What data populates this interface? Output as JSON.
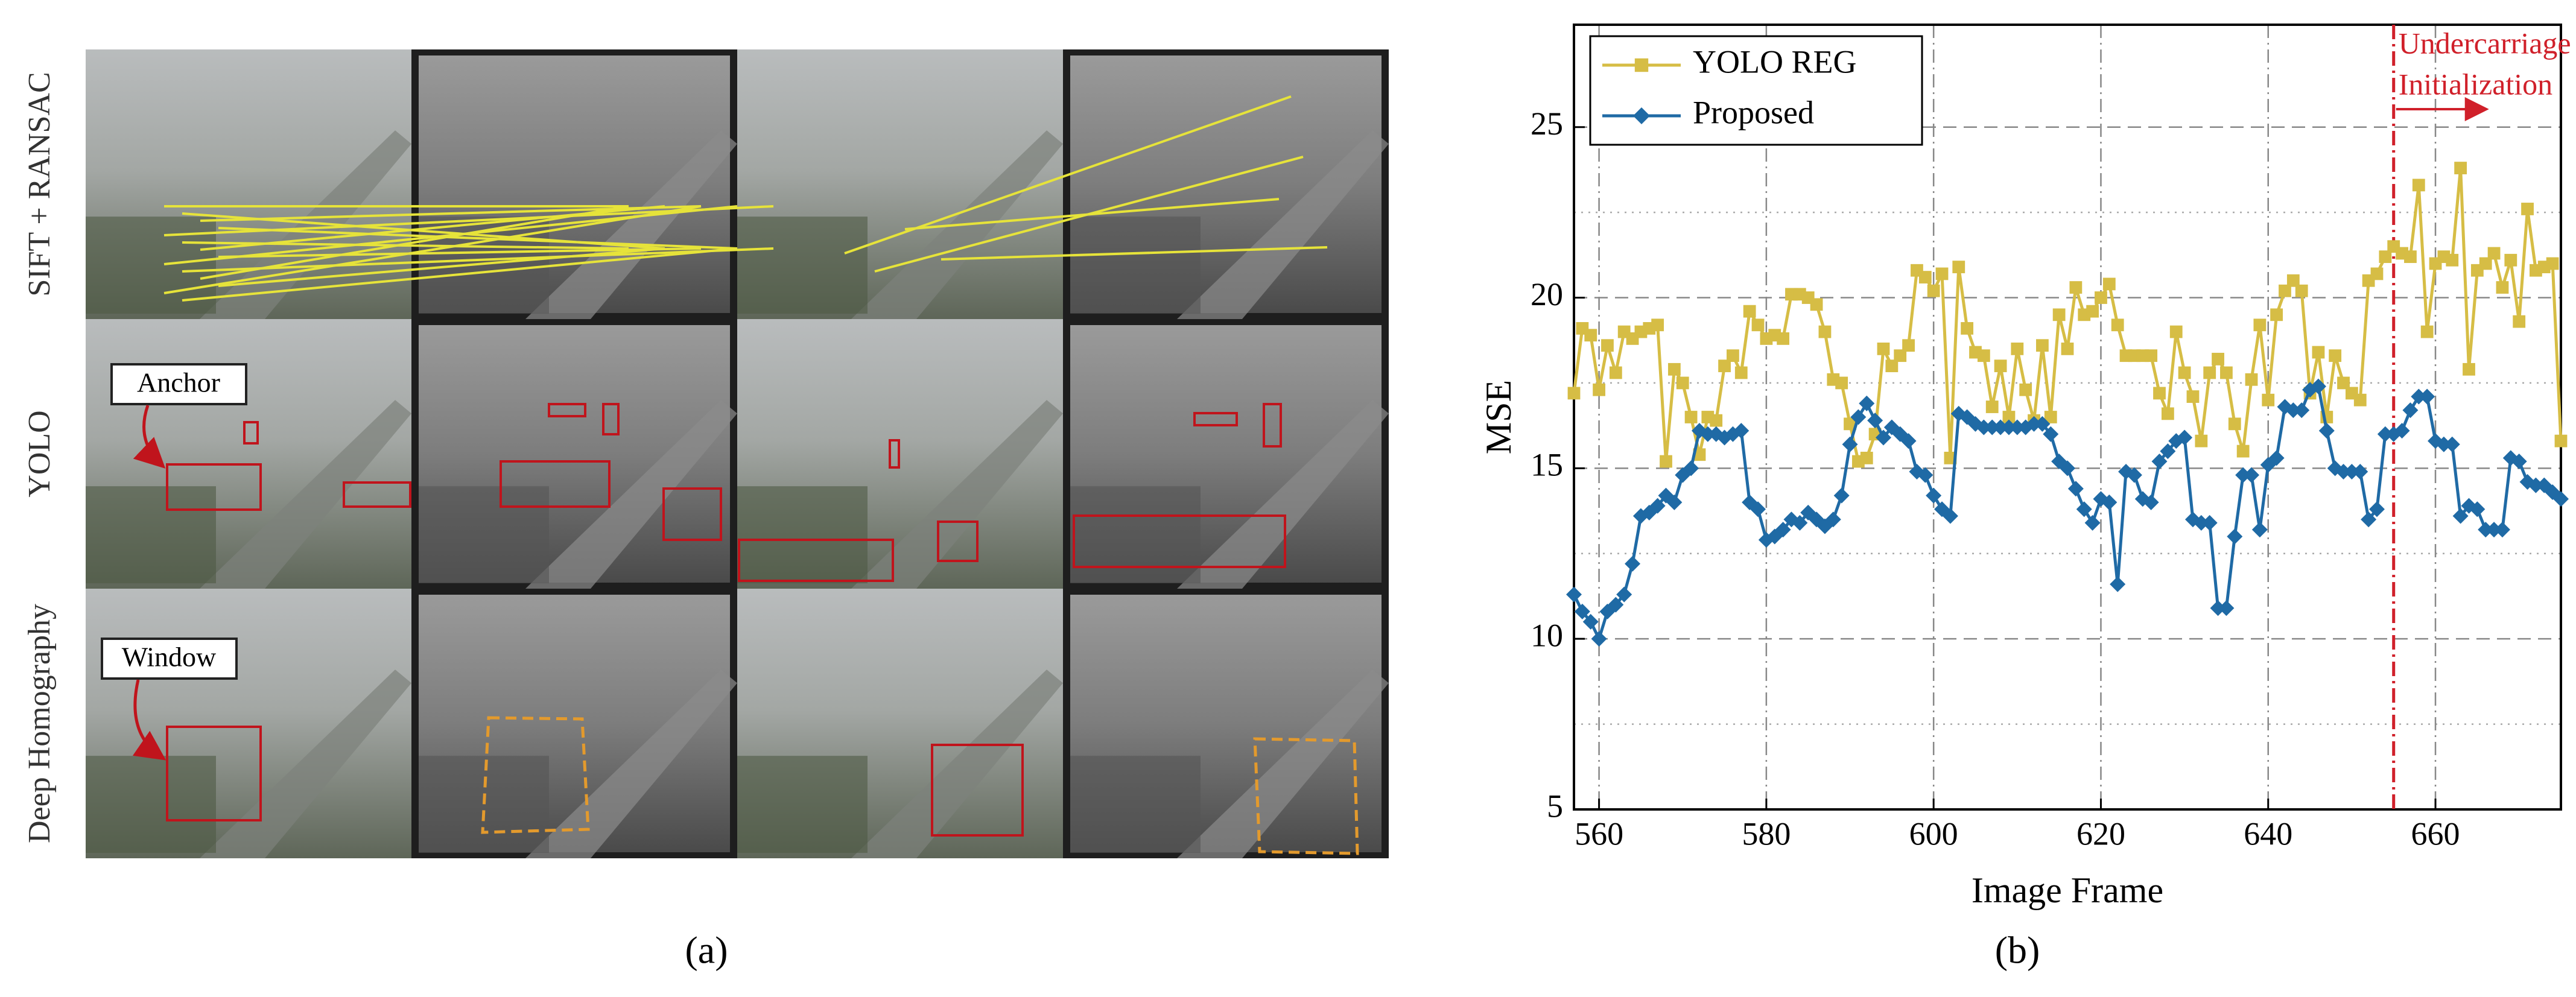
{
  "figure": {
    "panel_a": {
      "row_labels": [
        "SIFT + RANSAC",
        "YOLO",
        "Deep Homography"
      ],
      "callouts": [
        "Anchor",
        "Window"
      ],
      "caption": "(a)"
    },
    "panel_b": {
      "caption": "(b)"
    }
  },
  "chart_data": {
    "type": "line",
    "x_label": "Image Frame",
    "y_label": "MSE",
    "xlim": [
      557,
      675
    ],
    "ylim": [
      5,
      28
    ],
    "xticks": [
      560,
      580,
      600,
      620,
      640,
      660
    ],
    "yticks": [
      5,
      10,
      15,
      20,
      25
    ],
    "minor_yticks": [
      7.5,
      12.5,
      17.5,
      22.5
    ],
    "grid": true,
    "legend": "upper left",
    "annotation": {
      "text": [
        "Undercarriage",
        "Initialization"
      ],
      "x": 655,
      "color": "#d0202a"
    },
    "x": [
      557,
      558,
      559,
      560,
      561,
      562,
      563,
      564,
      565,
      566,
      567,
      568,
      569,
      570,
      571,
      572,
      573,
      574,
      575,
      576,
      577,
      578,
      579,
      580,
      581,
      582,
      583,
      584,
      585,
      586,
      587,
      588,
      589,
      590,
      591,
      592,
      593,
      594,
      595,
      596,
      597,
      598,
      599,
      600,
      601,
      602,
      603,
      604,
      605,
      606,
      607,
      608,
      609,
      610,
      611,
      612,
      613,
      614,
      615,
      616,
      617,
      618,
      619,
      620,
      621,
      622,
      623,
      624,
      625,
      626,
      627,
      628,
      629,
      630,
      631,
      632,
      633,
      634,
      635,
      636,
      637,
      638,
      639,
      640,
      641,
      642,
      643,
      644,
      645,
      646,
      647,
      648,
      649,
      650,
      651,
      652,
      653,
      654,
      655,
      656,
      657,
      658,
      659,
      660,
      661,
      662,
      663,
      664,
      665,
      666,
      667,
      668,
      669,
      670,
      671,
      672,
      673,
      674,
      675
    ],
    "series": [
      {
        "name": "YOLO REG",
        "color": "#d6bd45",
        "marker": "square",
        "values": [
          17.2,
          19.1,
          18.9,
          17.3,
          18.6,
          17.8,
          19.0,
          18.8,
          19.0,
          19.1,
          19.2,
          15.2,
          17.9,
          17.5,
          16.5,
          15.4,
          16.5,
          16.4,
          18.0,
          18.3,
          17.8,
          19.6,
          19.2,
          18.8,
          18.9,
          18.8,
          20.1,
          20.1,
          20.0,
          19.8,
          19.0,
          17.6,
          17.5,
          16.3,
          15.2,
          15.3,
          16.0,
          18.5,
          18.0,
          18.3,
          18.6,
          20.8,
          20.6,
          20.2,
          20.7,
          15.3,
          20.9,
          19.1,
          18.4,
          18.3,
          16.8,
          18.0,
          16.5,
          18.5,
          17.3,
          16.4,
          18.6,
          16.5,
          19.5,
          18.5,
          20.3,
          19.5,
          19.6,
          20.0,
          20.4,
          19.2,
          18.3,
          18.3,
          18.3,
          18.3,
          17.2,
          16.6,
          19.0,
          17.8,
          17.1,
          15.8,
          17.8,
          18.2,
          17.8,
          16.3,
          15.5,
          17.6,
          19.2,
          17.0,
          19.5,
          20.2,
          20.5,
          20.2,
          17.2,
          18.4,
          16.5,
          18.3,
          17.5,
          17.2,
          17.0,
          20.5,
          20.7,
          21.2,
          21.5,
          21.3,
          21.2,
          23.3,
          19.0,
          21.0,
          21.2,
          21.1,
          23.8,
          17.9,
          20.8,
          21.0,
          21.3,
          20.3,
          21.1,
          19.3,
          22.6,
          20.8,
          20.9,
          21.0,
          15.8
        ]
      },
      {
        "name": "Proposed",
        "color": "#1f6aa5",
        "marker": "diamond",
        "values": [
          11.3,
          10.8,
          10.5,
          10.0,
          10.8,
          11.0,
          11.3,
          12.2,
          13.6,
          13.7,
          13.9,
          14.2,
          14.0,
          14.8,
          15.0,
          16.1,
          16.0,
          16.0,
          15.9,
          16.0,
          16.1,
          14.0,
          13.8,
          12.9,
          13.0,
          13.2,
          13.5,
          13.4,
          13.7,
          13.5,
          13.3,
          13.5,
          14.2,
          15.7,
          16.5,
          16.9,
          16.4,
          15.9,
          16.2,
          16.0,
          15.8,
          14.9,
          14.8,
          14.2,
          13.8,
          13.6,
          16.6,
          16.5,
          16.3,
          16.2,
          16.2,
          16.2,
          16.2,
          16.2,
          16.2,
          16.3,
          16.3,
          16.0,
          15.2,
          15.0,
          14.4,
          13.8,
          13.4,
          14.1,
          14.0,
          11.6,
          14.9,
          14.8,
          14.1,
          14.0,
          15.2,
          15.5,
          15.8,
          15.9,
          13.5,
          13.4,
          13.4,
          10.9,
          10.9,
          13.0,
          14.8,
          14.8,
          13.2,
          15.1,
          15.3,
          16.8,
          16.7,
          16.7,
          17.3,
          17.4,
          16.1,
          15.0,
          14.9,
          14.9,
          14.9,
          13.5,
          13.8,
          16.0,
          16.0,
          16.1,
          16.7,
          17.1,
          17.1,
          15.8,
          15.7,
          15.7,
          13.6,
          13.9,
          13.8,
          13.2,
          13.2,
          13.2,
          15.3,
          15.2,
          14.6,
          14.5,
          14.5,
          14.3,
          14.1
        ]
      }
    ]
  }
}
